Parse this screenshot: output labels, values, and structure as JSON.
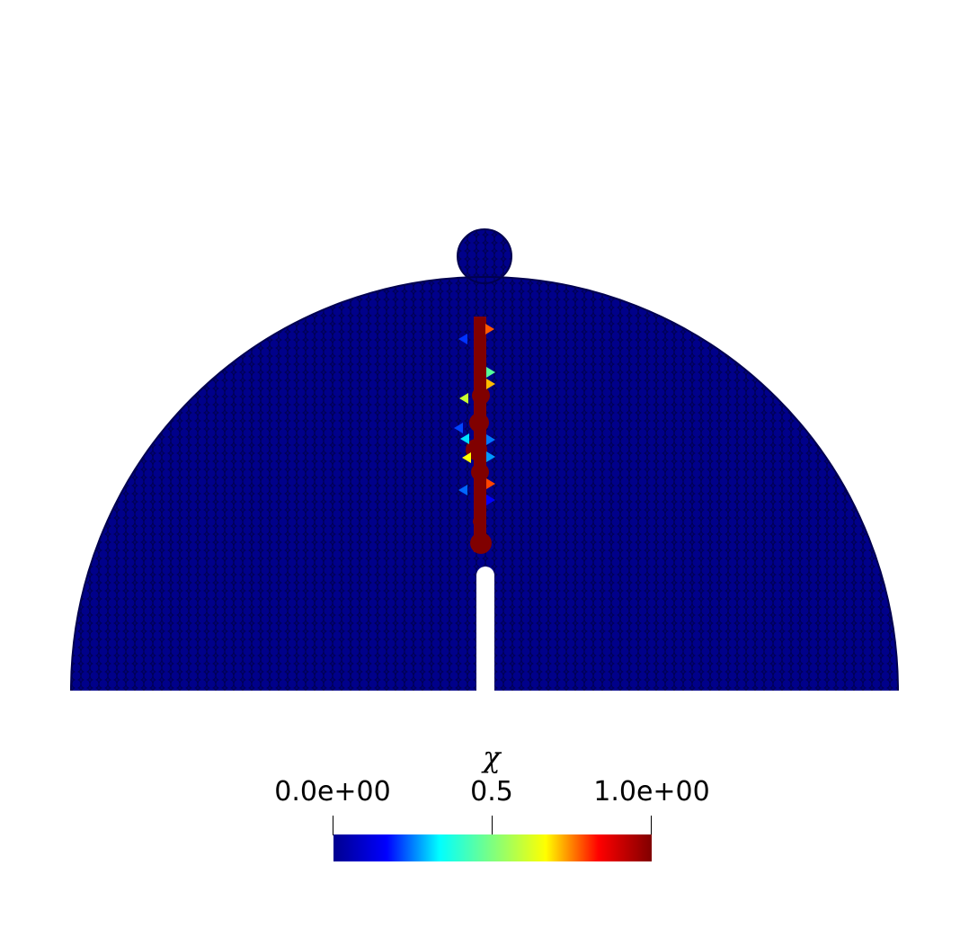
{
  "colorbar": {
    "title": "χ",
    "min_label": "0.0e+00",
    "mid_label": "0.5",
    "max_label": "1.0e+00",
    "min": 0.0,
    "max": 1.0,
    "colormap": "jet",
    "stops": [
      "#00008f",
      "#0000ff",
      "#00ffff",
      "#7fff7f",
      "#ffff00",
      "#ff0000",
      "#800000"
    ]
  },
  "scene": {
    "background": "#ffffff",
    "particle_base_color": "#00007f",
    "crack_color": "#800000"
  }
}
